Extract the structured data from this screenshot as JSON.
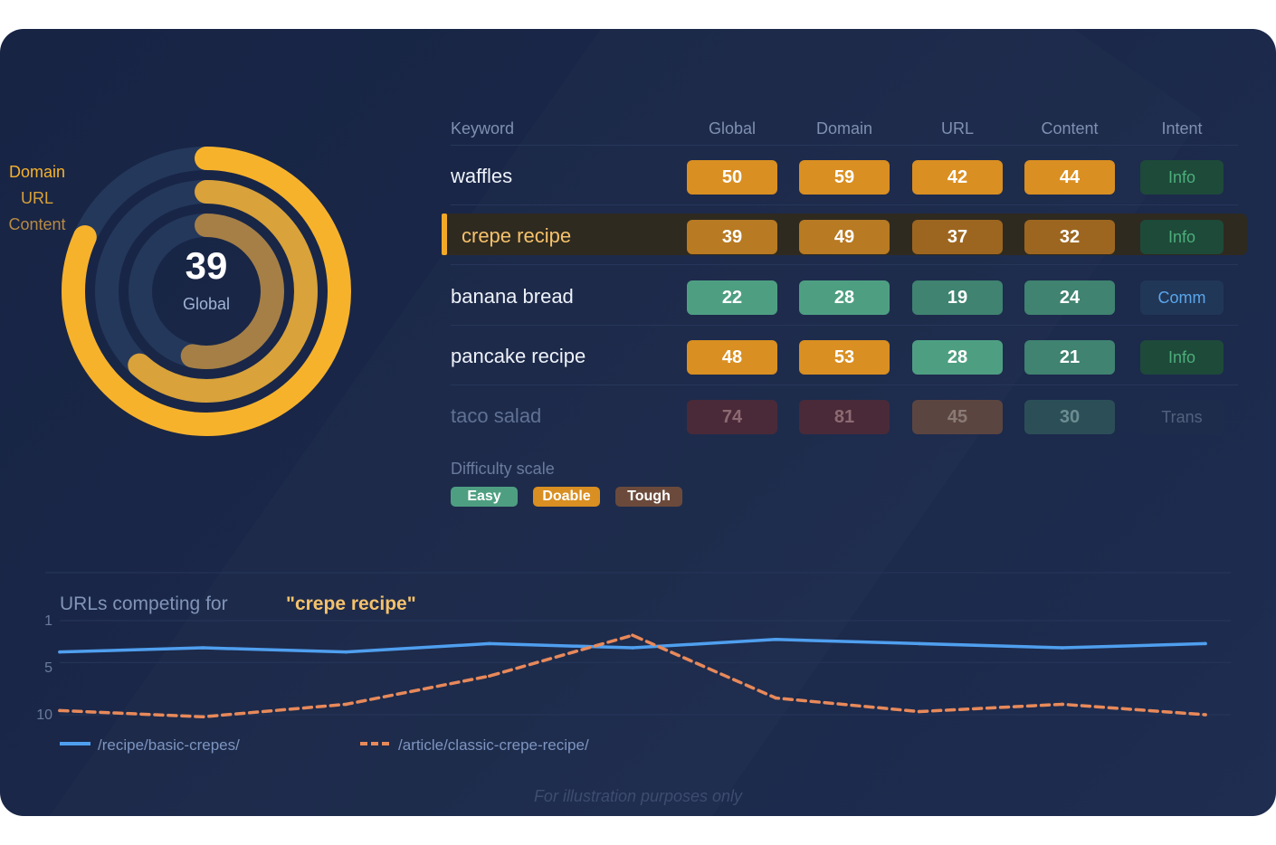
{
  "rings": {
    "legend": [
      "Domain",
      "URL",
      "Content"
    ],
    "center_value": "39",
    "center_label": "Global",
    "values": {
      "global": 39,
      "domain": 49,
      "url": 37,
      "content": 32
    },
    "colors": {
      "track": "#24385c",
      "outer": "#f7b22c",
      "middle": "#d9a23a",
      "inner": "#a57f46"
    }
  },
  "table": {
    "headers": [
      "Keyword",
      "Global",
      "Domain",
      "URL",
      "Content",
      "Intent"
    ],
    "rows": [
      {
        "keyword": "waffles",
        "values": [
          "50",
          "59",
          "42",
          "44"
        ],
        "intent": "Info",
        "highlight": false
      },
      {
        "keyword": "crepe recipe",
        "values": [
          "39",
          "49",
          "37",
          "32"
        ],
        "intent": "Info",
        "highlight": true
      },
      {
        "keyword": "banana bread",
        "values": [
          "22",
          "28",
          "19",
          "24"
        ],
        "intent": "Comm",
        "highlight": false
      },
      {
        "keyword": "pancake recipe",
        "values": [
          "48",
          "53",
          "28",
          "21"
        ],
        "intent": "Info",
        "highlight": false
      },
      {
        "keyword": "taco salad",
        "values": [
          "74",
          "81",
          "45",
          "30"
        ],
        "intent": "Trans",
        "highlight": false
      }
    ]
  },
  "scale": {
    "title": "Difficulty scale",
    "easy": "Easy",
    "doable": "Doable",
    "tough": "Tough"
  },
  "chart_data": {
    "type": "line",
    "title_prefix": "URLs competing for",
    "query": "\"crepe recipe\"",
    "yticks": [
      "1",
      "5",
      "10"
    ],
    "y_inverted": true,
    "ylim": [
      1,
      10
    ],
    "series": [
      {
        "name": "/recipe/basic-crepes/",
        "style": "solid",
        "color": "#4f9fef",
        "values": [
          4,
          3.6,
          4,
          3.2,
          3.6,
          2.8,
          3.2,
          3.6,
          3.2
        ]
      },
      {
        "name": "/article/classic-crepe-recipe/",
        "style": "dashed",
        "color": "#e8895a",
        "values": [
          9.6,
          10.2,
          9,
          6.3,
          2.4,
          8.4,
          9.7,
          9,
          10
        ]
      }
    ]
  },
  "footnote": "For illustration purposes only"
}
